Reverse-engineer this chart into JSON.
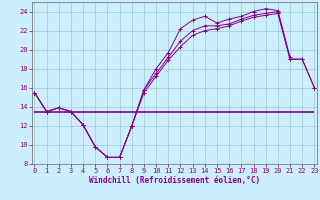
{
  "x": [
    0,
    1,
    2,
    3,
    4,
    5,
    6,
    7,
    8,
    9,
    10,
    11,
    12,
    13,
    14,
    15,
    16,
    17,
    18,
    19,
    20,
    21,
    22,
    23
  ],
  "line1": [
    15.5,
    13.5,
    13.9,
    13.5,
    12.1,
    9.8,
    8.7,
    8.7,
    12.0,
    15.8,
    18.0,
    19.7,
    22.2,
    23.1,
    23.5,
    22.8,
    23.2,
    23.5,
    24.0,
    24.3,
    24.1,
    19.2,
    null,
    null
  ],
  "line2": [
    15.5,
    13.5,
    13.9,
    13.5,
    12.1,
    9.8,
    8.7,
    8.7,
    12.0,
    15.8,
    17.5,
    19.2,
    20.9,
    22.0,
    22.5,
    22.5,
    22.7,
    23.2,
    23.6,
    23.8,
    24.0,
    19.0,
    19.0,
    16.0
  ],
  "line3": [
    15.5,
    13.5,
    13.9,
    13.5,
    12.1,
    9.8,
    8.7,
    8.7,
    12.0,
    15.5,
    17.2,
    18.9,
    20.3,
    21.5,
    22.0,
    22.2,
    22.5,
    23.0,
    23.4,
    23.6,
    23.8,
    19.0,
    19.0,
    16.0
  ],
  "hline_y": 13.5,
  "hline_xmin": 0,
  "hline_xmax": 23,
  "color": "#880088",
  "bg_color": "#cceeff",
  "grid_color": "#99cccc",
  "xlabel": "Windchill (Refroidissement éolien,°C)",
  "ylim": [
    8,
    25.0
  ],
  "xlim": [
    -0.2,
    23.2
  ],
  "yticks": [
    8,
    10,
    12,
    14,
    16,
    18,
    20,
    22,
    24
  ],
  "xticks": [
    0,
    1,
    2,
    3,
    4,
    5,
    6,
    7,
    8,
    9,
    10,
    11,
    12,
    13,
    14,
    15,
    16,
    17,
    18,
    19,
    20,
    21,
    22,
    23
  ],
  "xlabel_fontsize": 5.5,
  "tick_fontsize": 5.0
}
